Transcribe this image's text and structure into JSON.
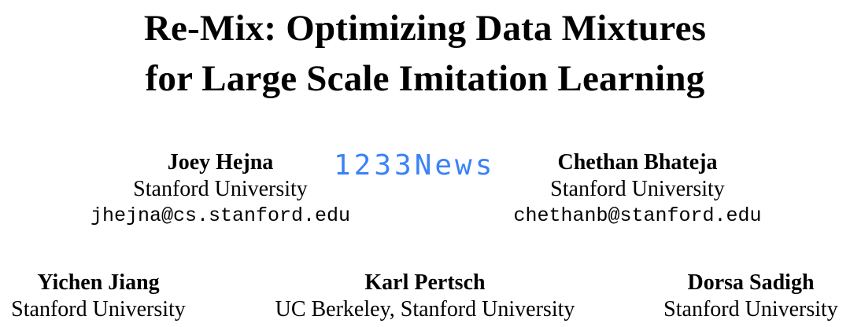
{
  "title": {
    "line1": "Re-Mix: Optimizing Data Mixtures",
    "line2": "for Large Scale Imitation Learning"
  },
  "authors": [
    {
      "name": "Joey Hejna",
      "affiliation": "Stanford University",
      "email": "jhejna@cs.stanford.edu"
    },
    {
      "name": "Chethan Bhateja",
      "affiliation": "Stanford University",
      "email": "chethanb@stanford.edu"
    },
    {
      "name": "Yichen Jiang",
      "affiliation": "Stanford University"
    },
    {
      "name": "Karl Pertsch",
      "affiliation": "UC Berkeley, Stanford University"
    },
    {
      "name": "Dorsa Sadigh",
      "affiliation": "Stanford University"
    }
  ],
  "watermark": {
    "text": "1233News",
    "color": "#3b82f6"
  }
}
